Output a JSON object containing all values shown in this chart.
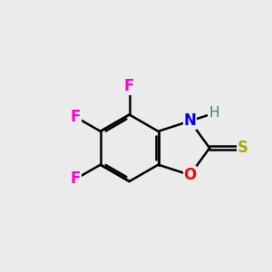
{
  "bg_color": "#ebebeb",
  "bond_color": "#000000",
  "bond_width": 1.8,
  "atom_colors": {
    "F": "#ff00cc",
    "N": "#0000ee",
    "H": "#3a8080",
    "O": "#ff0000",
    "S": "#aaaa00"
  },
  "font_size": 12,
  "figsize": [
    3.0,
    3.0
  ],
  "dpi": 100
}
